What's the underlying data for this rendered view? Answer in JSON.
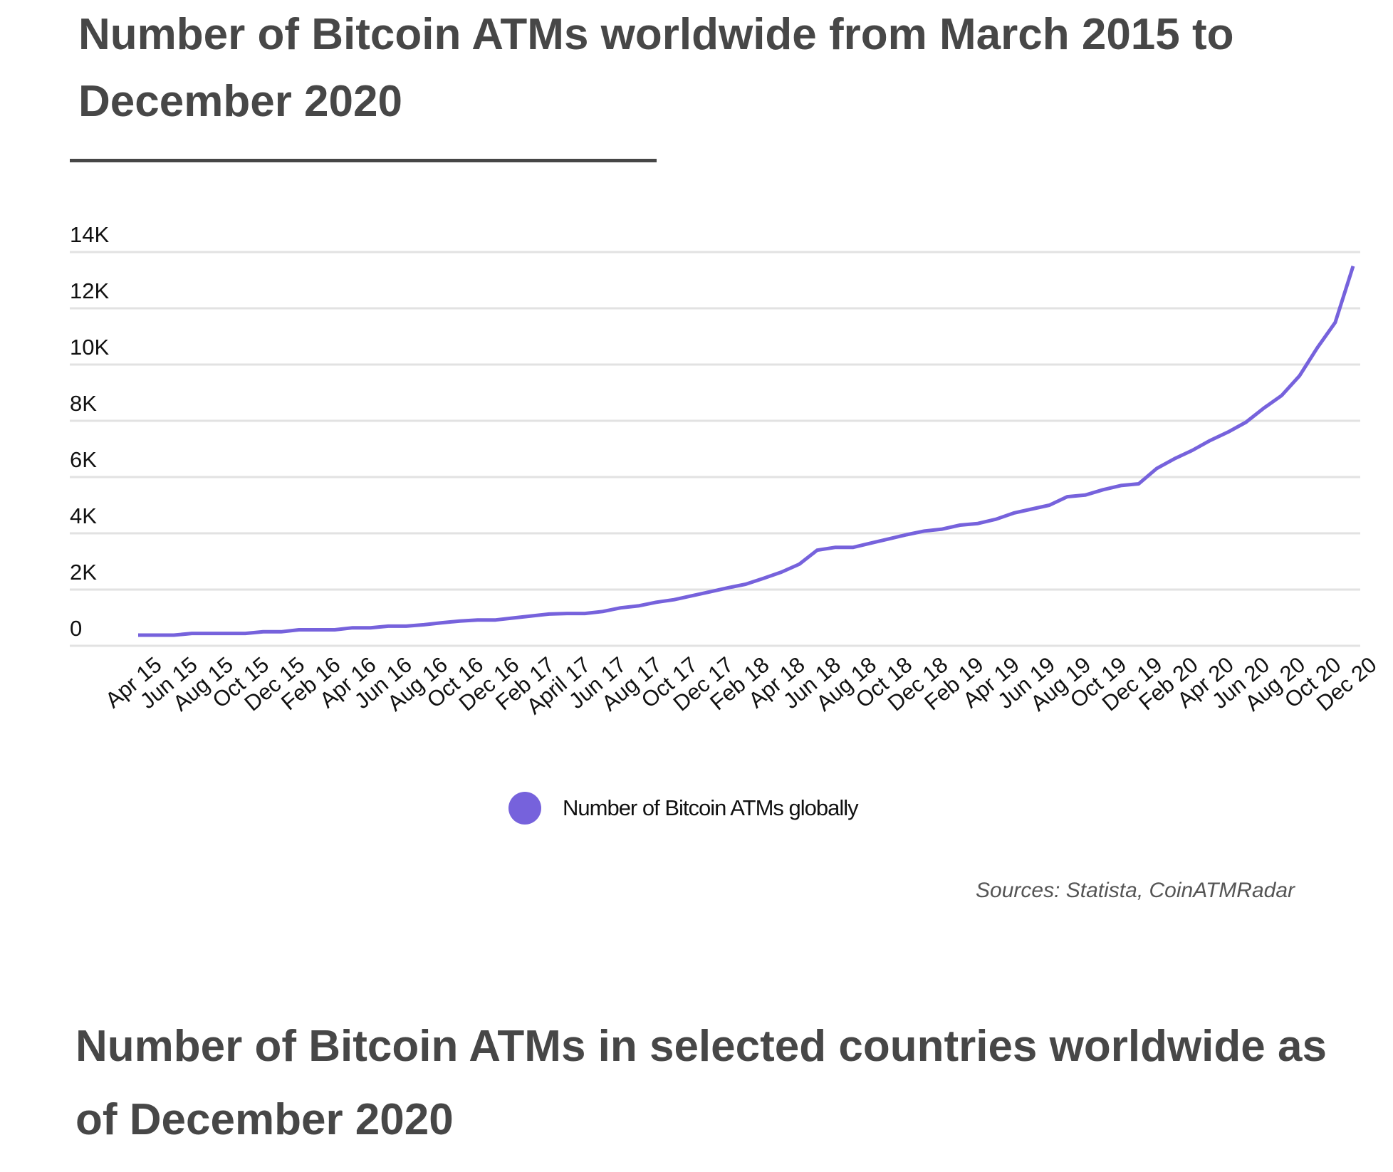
{
  "chart_data": {
    "type": "line",
    "title": "Number of Bitcoin ATMs worldwide from March 2015 to December 2020",
    "xlabel": "",
    "ylabel": "",
    "ylim": [
      0,
      14000
    ],
    "y_ticks": [
      0,
      2000,
      4000,
      6000,
      8000,
      10000,
      12000,
      14000
    ],
    "y_tick_labels": [
      "0",
      "2K",
      "4K",
      "6K",
      "8K",
      "10K",
      "12K",
      "14K"
    ],
    "x_tick_labels": [
      "Apr 15",
      "Jun 15",
      "Aug 15",
      "Oct 15",
      "Dec 15",
      "Feb 16",
      "Apr 16",
      "Jun 16",
      "Aug 16",
      "Oct 16",
      "Dec 16",
      "Feb 17",
      "April 17",
      "Jun 17",
      "Aug 17",
      "Oct 17",
      "Dec 17",
      "Feb 18",
      "Apr 18",
      "Jun 18",
      "Aug 18",
      "Oct 18",
      "Dec 18",
      "Feb 19",
      "Apr 19",
      "Jun 19",
      "Aug 19",
      "Oct 19",
      "Dec 19",
      "Feb 20",
      "Apr 20",
      "Jun 20",
      "Aug 20",
      "Oct 20",
      "Dec 20"
    ],
    "grid": true,
    "legend_position": "bottom",
    "series": [
      {
        "name": "Number of Bitcoin ATMs globally",
        "color": "#7662dc",
        "values": [
          380,
          380,
          380,
          440,
          440,
          440,
          440,
          500,
          500,
          570,
          570,
          570,
          640,
          640,
          700,
          700,
          750,
          820,
          880,
          920,
          920,
          990,
          1060,
          1130,
          1150,
          1150,
          1220,
          1350,
          1420,
          1550,
          1640,
          1780,
          1920,
          2060,
          2190,
          2400,
          2620,
          2900,
          3400,
          3500,
          3500,
          3650,
          3800,
          3950,
          4080,
          4150,
          4290,
          4350,
          4500,
          4720,
          4860,
          5000,
          5300,
          5360,
          5550,
          5700,
          5760,
          6300,
          6650,
          6950,
          7300,
          7600,
          7950,
          8450,
          8900,
          9600,
          10600,
          11500,
          13500
        ]
      }
    ]
  },
  "source": "Sources: Statista, CoinATMRadar",
  "second_title": "Number of Bitcoin ATMs in selected countries worldwide as of December 2020"
}
